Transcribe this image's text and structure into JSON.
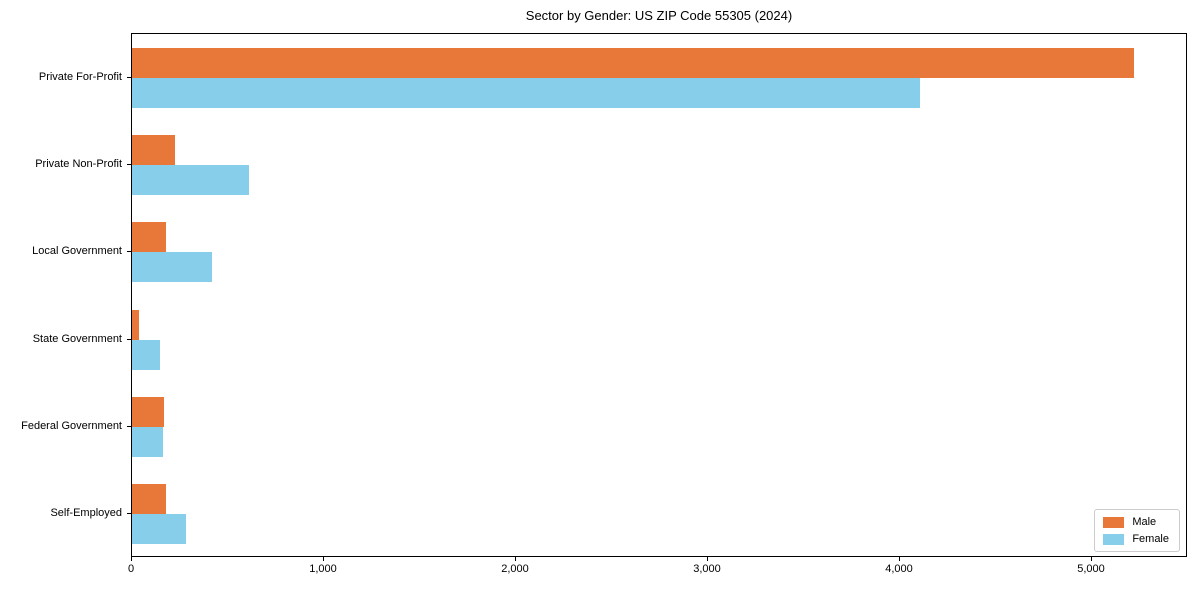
{
  "chart_data": {
    "type": "bar",
    "orientation": "horizontal",
    "title": "Sector by Gender: US ZIP Code 55305 (2024)",
    "categories": [
      "Private For-Profit",
      "Private Non-Profit",
      "Local Government",
      "State Government",
      "Federal Government",
      "Self-Employed"
    ],
    "series": [
      {
        "name": "Male",
        "color": "#e8773a",
        "values": [
          5230,
          225,
          180,
          35,
          165,
          180
        ]
      },
      {
        "name": "Female",
        "color": "#87ceeb",
        "values": [
          4110,
          610,
          420,
          145,
          160,
          280
        ]
      }
    ],
    "xlabel": "",
    "ylabel": "",
    "xlim": [
      0,
      5500
    ],
    "x_ticks": [
      0,
      1000,
      2000,
      3000,
      4000,
      5000
    ],
    "x_tick_labels": [
      "0",
      "1,000",
      "2,000",
      "3,000",
      "4,000",
      "5,000"
    ],
    "grid": false,
    "legend": {
      "position": "lower right",
      "entries": [
        "Male",
        "Female"
      ]
    }
  }
}
